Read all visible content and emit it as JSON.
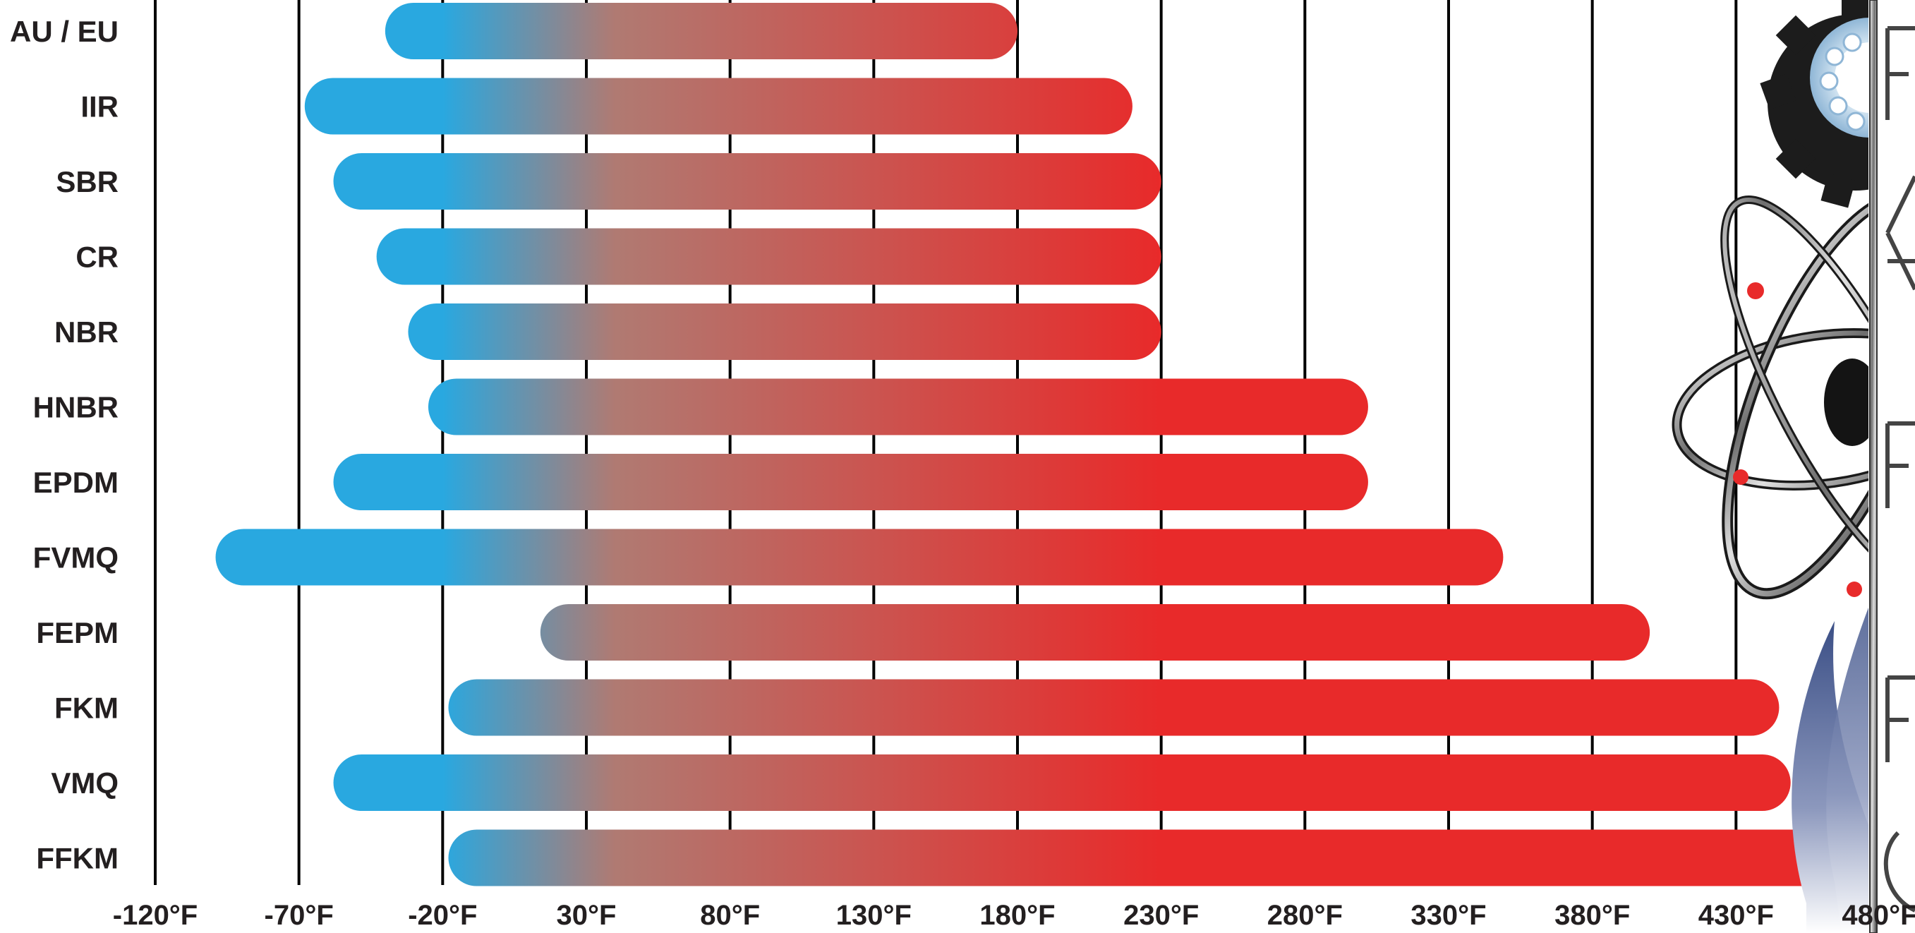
{
  "chart_data": {
    "type": "bar",
    "subtype": "floating-range",
    "orientation": "horizontal",
    "title": "",
    "xlabel": "",
    "ylabel": "",
    "x_unit": "°F",
    "xlim": [
      -120,
      480
    ],
    "x_ticks": [
      -120,
      -70,
      -20,
      30,
      80,
      130,
      180,
      230,
      280,
      330,
      380,
      430,
      480
    ],
    "x_tick_labels": [
      "-120°F",
      "-70°F",
      "-20°F",
      "30°F",
      "80°F",
      "130°F",
      "180°F",
      "230°F",
      "280°F",
      "330°F",
      "380°F",
      "430°F",
      "480°F"
    ],
    "grid": "vertical lines at each tick",
    "legend": "none",
    "categories": [
      "AU / EU",
      "IIR",
      "SBR",
      "CR",
      "NBR",
      "HNBR",
      "EPDM",
      "FVMQ",
      "FEPM",
      "FKM",
      "VMQ",
      "FFKM"
    ],
    "ranges": [
      {
        "label": "AU / EU",
        "min": -40,
        "max": 180
      },
      {
        "label": "IIR",
        "min": -68,
        "max": 220
      },
      {
        "label": "SBR",
        "min": -58,
        "max": 230
      },
      {
        "label": "CR",
        "min": -43,
        "max": 230
      },
      {
        "label": "NBR",
        "min": -32,
        "max": 230
      },
      {
        "label": "HNBR",
        "min": -25,
        "max": 302
      },
      {
        "label": "EPDM",
        "min": -58,
        "max": 302
      },
      {
        "label": "FVMQ",
        "min": -99,
        "max": 349
      },
      {
        "label": "FEPM",
        "min": 14,
        "max": 400
      },
      {
        "label": "FKM",
        "min": -18,
        "max": 445
      },
      {
        "label": "VMQ",
        "min": -58,
        "max": 449
      },
      {
        "label": "FFKM",
        "min": -18,
        "max": 480
      }
    ],
    "colors": {
      "cold": "#29a8e0",
      "mid": "#b07a72",
      "hot": "#e82a2a",
      "grid": "#000000",
      "text": "#231f20"
    },
    "color_encoding": "gradient from blue (cold, -20°F and below) to red (hot) along temperature"
  },
  "logo": {
    "description_icon": "company-logo-gear-atom-flame",
    "colors": [
      "#1c1c1c",
      "#a9cbe3",
      "#e82a2a",
      "#3b4f86",
      "#b0b0b0"
    ]
  }
}
